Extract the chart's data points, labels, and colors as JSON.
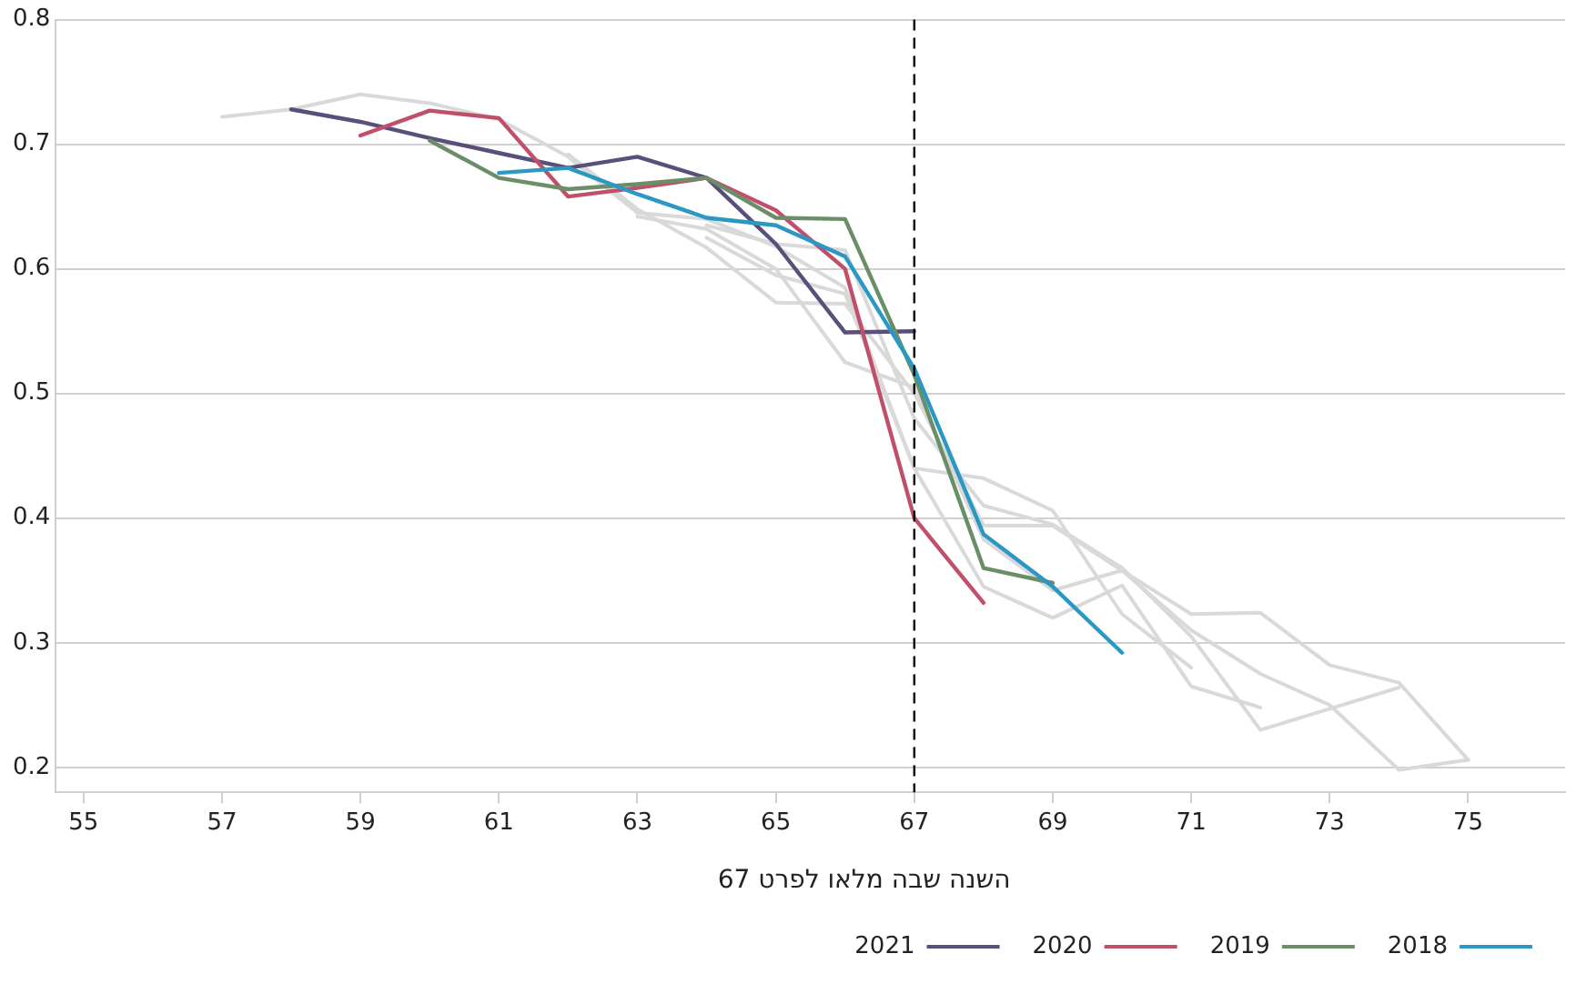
{
  "chart_data": {
    "type": "line",
    "legend_title": "השנה שבה מלאו לפרט 67",
    "xlim": [
      54.6,
      76.4
    ],
    "xticks": [
      55,
      57,
      59,
      61,
      63,
      65,
      67,
      69,
      71,
      73,
      75
    ],
    "ylim": [
      0.18,
      0.8
    ],
    "yticks": [
      0.2,
      0.3,
      0.4,
      0.5,
      0.6,
      0.7,
      0.8
    ],
    "grid": "y",
    "legend": "bottom right",
    "marker": "none",
    "line_style": "solid",
    "ref_lines": [
      {
        "axis": "x",
        "value": 67,
        "color": "#000000",
        "line_style": "dashed"
      }
    ],
    "series": [
      {
        "color": "#d9d9d9",
        "x": [
          57,
          58,
          59,
          60,
          61,
          62,
          63,
          64,
          65,
          66,
          67,
          68,
          69,
          70,
          71
        ],
        "values": [
          0.722,
          0.728,
          0.74,
          0.733,
          0.72,
          0.69,
          0.645,
          0.64,
          0.618,
          0.585,
          0.44,
          0.432,
          0.406,
          0.323,
          0.28
        ]
      },
      {
        "color": "#d9d9d9",
        "x": [
          62,
          63,
          64,
          65,
          66,
          67,
          68,
          69,
          70,
          71,
          72,
          73,
          74,
          75
        ],
        "values": [
          0.692,
          0.648,
          0.617,
          0.573,
          0.572,
          0.5,
          0.394,
          0.394,
          0.358,
          0.323,
          0.324,
          0.282,
          0.268,
          0.206
        ]
      },
      {
        "color": "#d9d9d9",
        "x": [
          63,
          64,
          65,
          66,
          67,
          68,
          69,
          70,
          71,
          72,
          73,
          74,
          75
        ],
        "values": [
          0.642,
          0.632,
          0.6,
          0.525,
          0.505,
          0.383,
          0.342,
          0.358,
          0.31,
          0.275,
          0.25,
          0.198,
          0.206
        ]
      },
      {
        "color": "#d9d9d9",
        "x": [
          64,
          65,
          66,
          67,
          68,
          69,
          70,
          71,
          72
        ],
        "values": [
          0.625,
          0.595,
          0.58,
          0.44,
          0.345,
          0.32,
          0.346,
          0.265,
          0.248
        ]
      },
      {
        "color": "#d9d9d9",
        "x": [
          64,
          65,
          66,
          67,
          68,
          69,
          70,
          71,
          72,
          73,
          74
        ],
        "values": [
          0.635,
          0.62,
          0.615,
          0.48,
          0.41,
          0.395,
          0.36,
          0.305,
          0.23,
          0.247,
          0.264
        ]
      },
      {
        "name": "2018",
        "color": "#2b98c4",
        "x": [
          61,
          62,
          63,
          64,
          65,
          66,
          67,
          68,
          69,
          70
        ],
        "values": [
          0.677,
          0.681,
          0.66,
          0.641,
          0.635,
          0.61,
          0.52,
          0.387,
          0.345,
          0.292
        ]
      },
      {
        "name": "2019",
        "color": "#6a8f68",
        "x": [
          60,
          61,
          62,
          63,
          64,
          65,
          66,
          67,
          68,
          69
        ],
        "values": [
          0.703,
          0.673,
          0.664,
          0.668,
          0.673,
          0.641,
          0.64,
          0.515,
          0.36,
          0.348
        ]
      },
      {
        "name": "2020",
        "color": "#c0506a",
        "x": [
          59,
          60,
          61,
          62,
          63,
          64,
          65,
          66,
          67,
          68
        ],
        "values": [
          0.707,
          0.727,
          0.721,
          0.658,
          0.665,
          0.673,
          0.647,
          0.6,
          0.4,
          0.332
        ]
      },
      {
        "name": "2021",
        "color": "#5a4e7a",
        "x": [
          58,
          59,
          60,
          61,
          62,
          63,
          64,
          65,
          66,
          67
        ],
        "values": [
          0.728,
          0.718,
          0.705,
          0.693,
          0.681,
          0.69,
          0.673,
          0.62,
          0.549,
          0.55
        ]
      }
    ]
  }
}
